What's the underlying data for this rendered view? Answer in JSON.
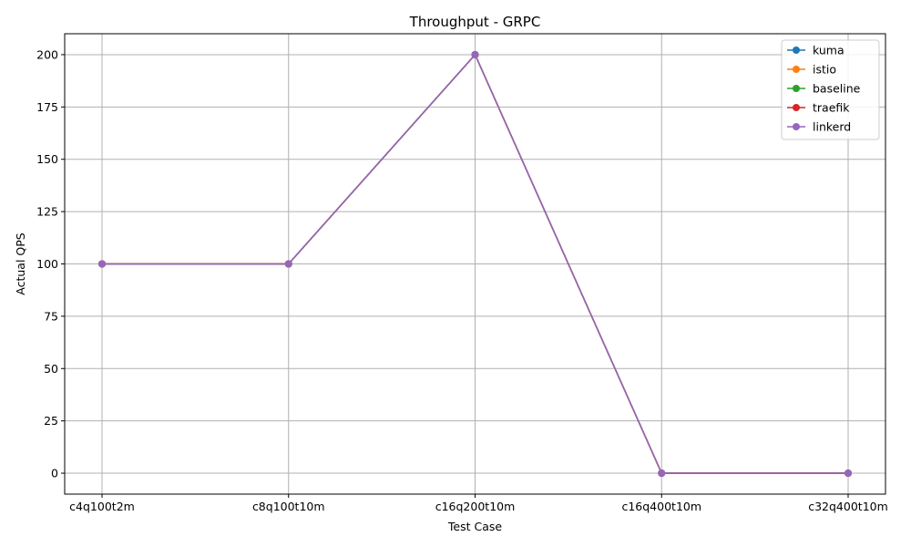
{
  "chart_data": {
    "type": "line",
    "title": "Throughput - GRPC",
    "xlabel": "Test Case",
    "ylabel": "Actual QPS",
    "categories": [
      "c4q100t2m",
      "c8q100t10m",
      "c16q200t10m",
      "c16q400t10m",
      "c32q400t10m"
    ],
    "ylim": [
      -10,
      210
    ],
    "yticks": [
      0,
      25,
      50,
      75,
      100,
      125,
      150,
      175,
      200
    ],
    "grid": true,
    "legend_position": "top-right",
    "markers": "circle",
    "series": [
      {
        "name": "kuma",
        "color": "#1f77b4",
        "values": [
          100,
          100,
          200,
          0,
          0
        ]
      },
      {
        "name": "istio",
        "color": "#ff7f0e",
        "values": [
          100,
          100,
          200,
          0,
          0
        ]
      },
      {
        "name": "baseline",
        "color": "#2ca02c",
        "values": [
          100,
          100,
          200,
          0,
          0
        ]
      },
      {
        "name": "traefik",
        "color": "#d62728",
        "values": [
          100,
          100,
          200,
          0,
          0
        ]
      },
      {
        "name": "linkerd",
        "color": "#9467bd",
        "values": [
          100,
          100,
          200,
          0,
          0
        ]
      }
    ]
  }
}
